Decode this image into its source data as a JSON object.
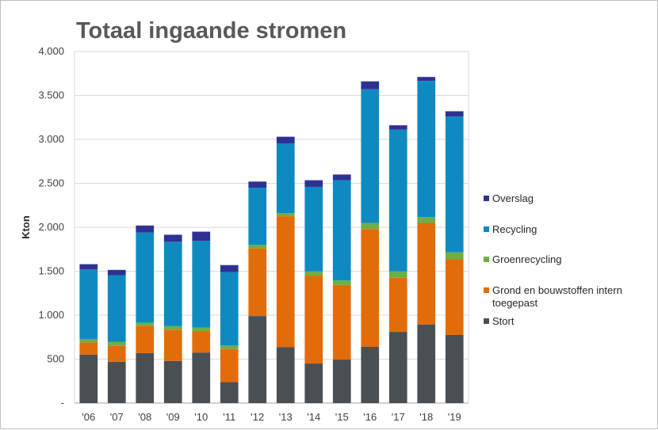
{
  "chart_data": {
    "type": "bar",
    "stacked": true,
    "title": "Totaal ingaande stromen",
    "xlabel": "",
    "ylabel": "Kton",
    "ylim": [
      0,
      4000
    ],
    "yticks": [
      "-",
      "500",
      "1.000",
      "1.500",
      "2.000",
      "2.500",
      "3.000",
      "3.500",
      "4.000"
    ],
    "grid": "horizontal",
    "legend_position": "right",
    "categories": [
      "'06",
      "'07",
      "'08",
      "'09",
      "'10",
      "'11",
      "'12",
      "'13",
      "'14",
      "'15",
      "'16",
      "'17",
      "'18",
      "'19"
    ],
    "series": [
      {
        "name": "Stort",
        "color": "#4a4f54",
        "values": [
          550,
          470,
          570,
          480,
          575,
          240,
          990,
          635,
          450,
          495,
          640,
          810,
          895,
          775
        ]
      },
      {
        "name": "Grond en bouwstoffen intern toegepast",
        "color": "#e36c0a",
        "values": [
          140,
          180,
          305,
          355,
          245,
          375,
          770,
          1490,
          1000,
          850,
          1340,
          615,
          1155,
          860
        ]
      },
      {
        "name": "Groenrecycling",
        "color": "#70ad47",
        "values": [
          40,
          45,
          40,
          40,
          40,
          40,
          40,
          35,
          50,
          50,
          70,
          75,
          65,
          80
        ]
      },
      {
        "name": "Recycling",
        "color": "#0e8ac0",
        "values": [
          790,
          760,
          1025,
          960,
          985,
          835,
          650,
          795,
          960,
          1140,
          1520,
          1610,
          1550,
          1545
        ]
      },
      {
        "name": "Overslag",
        "color": "#2e3192",
        "values": [
          60,
          60,
          80,
          80,
          105,
          80,
          70,
          75,
          75,
          65,
          90,
          50,
          45,
          60
        ]
      }
    ],
    "legend_order": [
      "Overslag",
      "Recycling",
      "Groenrecycling",
      "Grond en bouwstoffen intern toegepast",
      "Stort"
    ]
  }
}
